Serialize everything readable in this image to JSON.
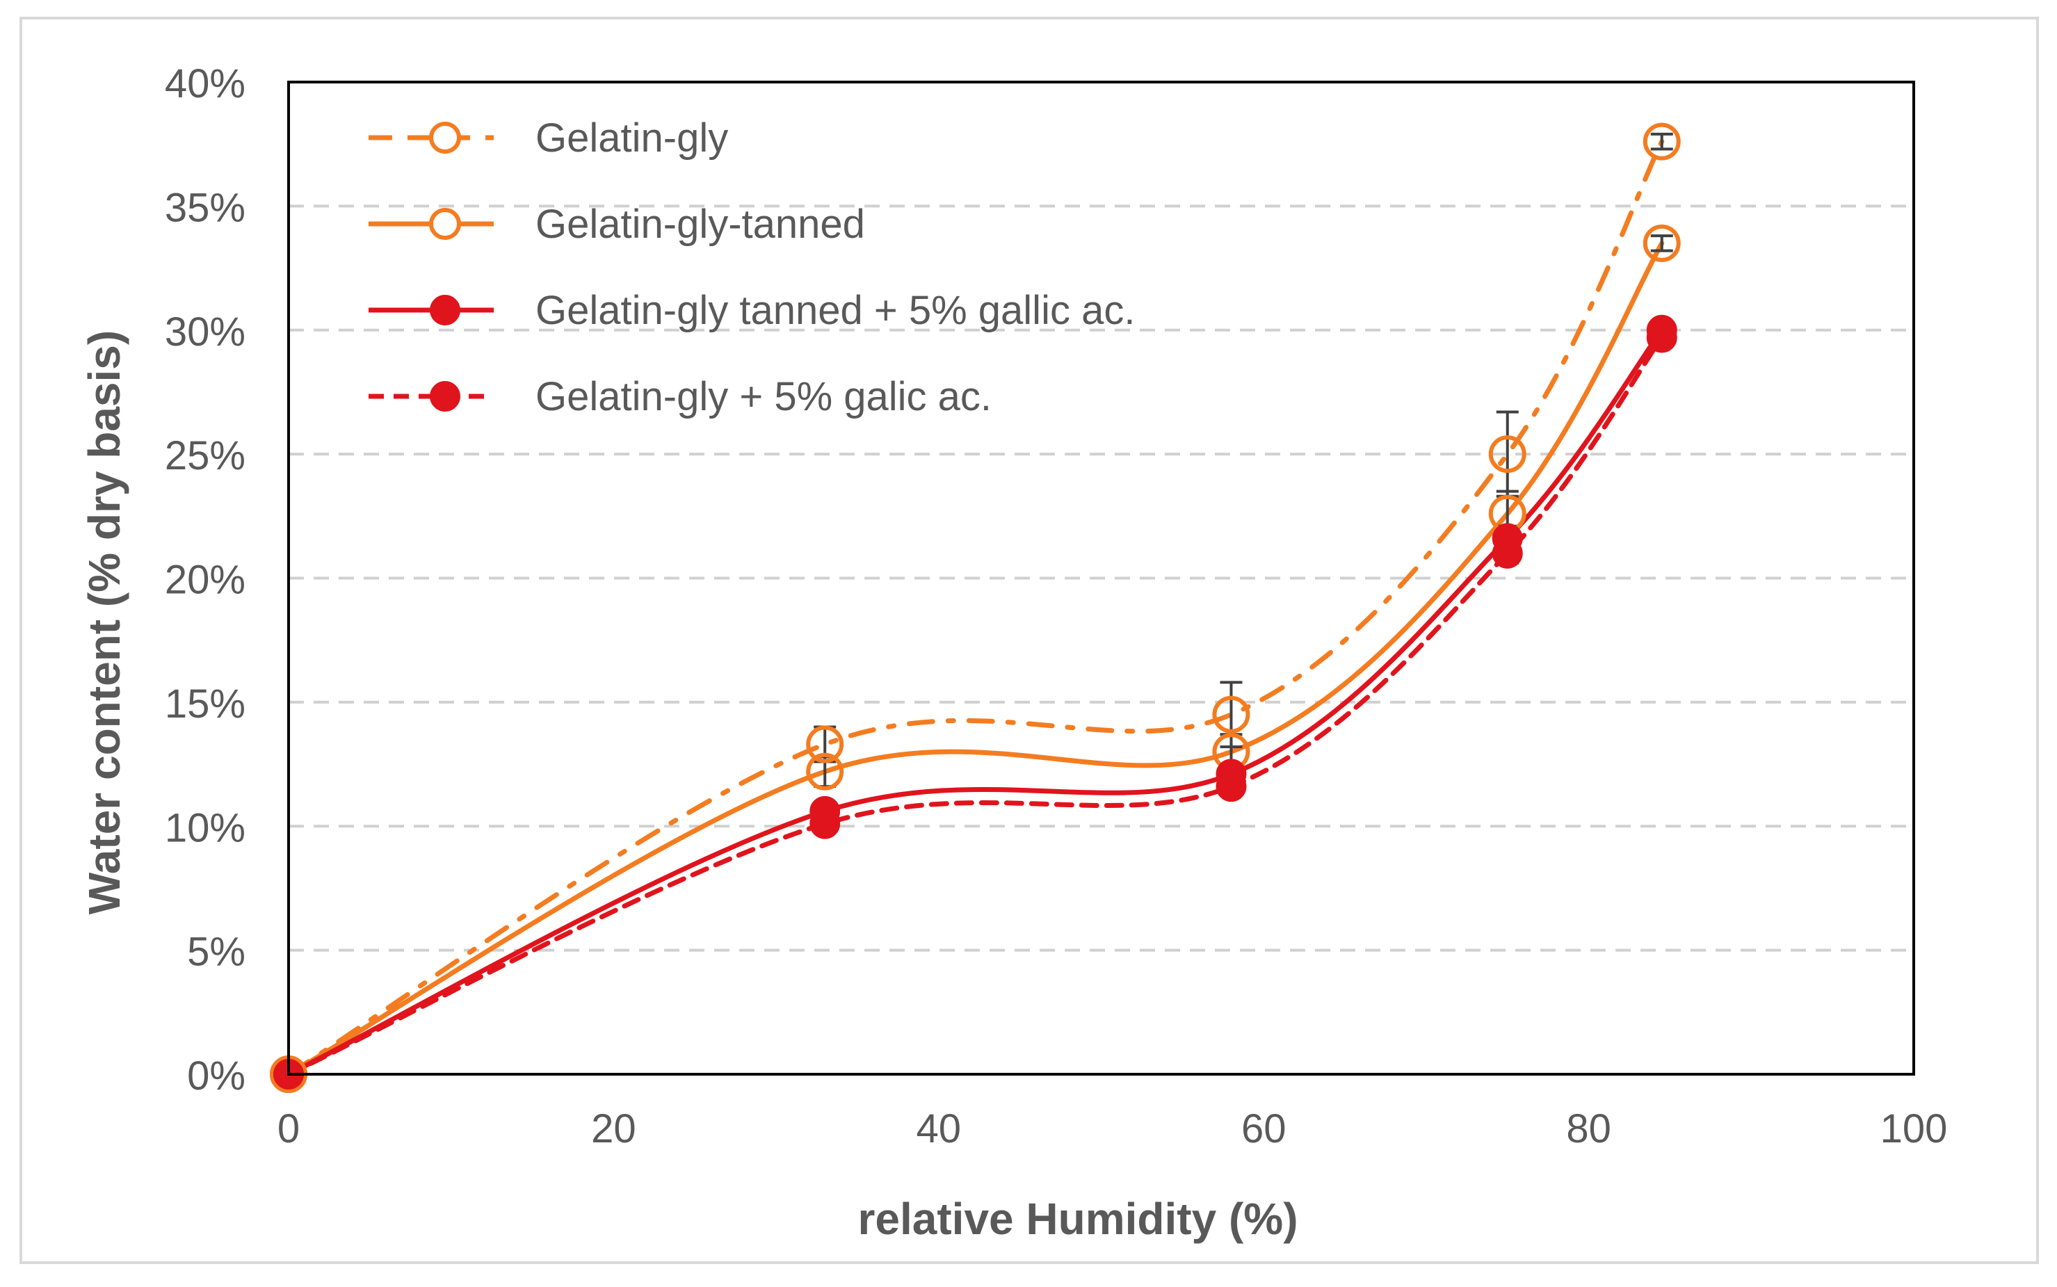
{
  "chart_data": {
    "type": "line",
    "title": "",
    "xlabel": "relative Humidity (%)",
    "ylabel": "Water content (% dry basis)",
    "xlim": [
      0,
      100
    ],
    "ylim": [
      0,
      40
    ],
    "x_ticks": [
      0,
      20,
      40,
      60,
      80,
      100
    ],
    "x_tick_labels": [
      "0",
      "20",
      "40",
      "60",
      "80",
      "100"
    ],
    "y_ticks": [
      0,
      5,
      10,
      15,
      20,
      25,
      30,
      35,
      40
    ],
    "y_tick_labels": [
      "0%",
      "5%",
      "10%",
      "15%",
      "20%",
      "25%",
      "30%",
      "35%",
      "40%"
    ],
    "grid": "horizontal dashed",
    "legend_position": "top-left",
    "series": [
      {
        "name": "Gelatin-gly",
        "color": "#f47c20",
        "line_style": "dash-dot",
        "marker": "open-circle",
        "x": [
          0,
          33,
          58,
          75,
          84.5
        ],
        "y": [
          0,
          13.3,
          14.5,
          25.0,
          37.6
        ],
        "error": [
          0,
          0.7,
          1.3,
          1.7,
          0.3
        ]
      },
      {
        "name": "Gelatin-gly-tanned",
        "color": "#f47c20",
        "line_style": "solid",
        "marker": "open-circle",
        "x": [
          0,
          33,
          58,
          75,
          84.5
        ],
        "y": [
          0,
          12.2,
          13.0,
          22.6,
          33.5
        ],
        "error": [
          0,
          0.6,
          0.7,
          0.9,
          0.3
        ]
      },
      {
        "name": "Gelatin-gly tanned + 5% gallic ac.",
        "color": "#e0141c",
        "line_style": "solid",
        "marker": "filled-circle",
        "x": [
          0,
          33,
          58,
          75,
          84.5
        ],
        "y": [
          0,
          10.6,
          12.1,
          21.6,
          30.0
        ],
        "error": [
          0,
          0.3,
          0.4,
          0.5,
          0.2
        ]
      },
      {
        "name": "Gelatin-gly + 5% galic ac.",
        "color": "#e0141c",
        "line_style": "dashed",
        "marker": "filled-circle",
        "x": [
          0,
          33,
          58,
          75,
          84.5
        ],
        "y": [
          0,
          10.1,
          11.6,
          21.0,
          29.7
        ],
        "error": [
          0,
          0.3,
          0.3,
          0.4,
          0.2
        ]
      }
    ]
  }
}
